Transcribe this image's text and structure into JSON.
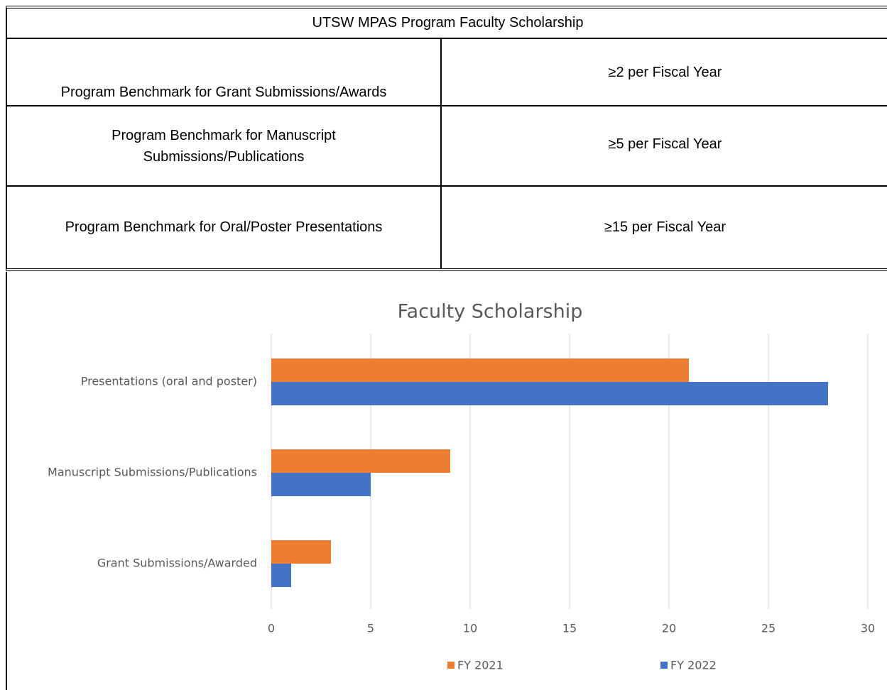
{
  "table": {
    "title": "UTSW MPAS Program Faculty Scholarship",
    "rows": [
      [
        "Program Benchmark for Grant Submissions/Awards",
        "≥2 per Fiscal Year"
      ],
      [
        "Program Benchmark for Manuscript Submissions/Publications",
        "≥5 per Fiscal Year"
      ],
      [
        "Program Benchmark for Oral/Poster Presentations",
        "≥15 per Fiscal Year"
      ]
    ]
  },
  "chart_data": {
    "type": "hbar",
    "title": "Faculty Scholarship",
    "categories": [
      "Presentations (oral and poster)",
      "Manuscript Submissions/Publications",
      "Grant Submissions/Awarded"
    ],
    "series": [
      {
        "name": "FY 2021",
        "color": "#ed7d31",
        "values": [
          21,
          9,
          3
        ]
      },
      {
        "name": "FY 2022",
        "color": "#4472c4",
        "values": [
          28,
          5,
          1
        ]
      }
    ],
    "xlim": [
      0,
      30
    ],
    "xticks": [
      0,
      5,
      10,
      15,
      20,
      25,
      30
    ],
    "grid": true,
    "legend": "bottom"
  }
}
